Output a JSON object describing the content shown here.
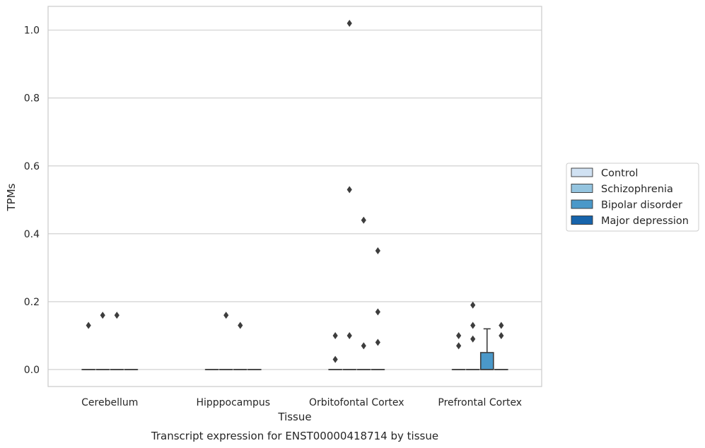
{
  "chart_data": {
    "type": "box",
    "title": "",
    "caption": "Transcript expression for ENST00000418714 by tissue",
    "xlabel": "Tissue",
    "ylabel": "TPMs",
    "ylim": [
      -0.05,
      1.07
    ],
    "yticks": [
      0.0,
      0.2,
      0.4,
      0.6,
      0.8,
      1.0
    ],
    "ytick_labels": [
      "0.0",
      "0.2",
      "0.4",
      "0.6",
      "0.8",
      "1.0"
    ],
    "categories": [
      "Cerebellum",
      "Hipppocampus",
      "Orbitofontal Cortex",
      "Prefrontal Cortex"
    ],
    "grid": "horizontal",
    "legend_position": "right",
    "series": [
      {
        "name": "Control",
        "color": "#d0e1f2",
        "boxes": [
          {
            "q1": 0,
            "median": 0,
            "q3": 0,
            "whislo": 0,
            "whishi": 0,
            "fliers": [
              0.13
            ]
          },
          {
            "q1": 0,
            "median": 0,
            "q3": 0,
            "whislo": 0,
            "whishi": 0,
            "fliers": []
          },
          {
            "q1": 0,
            "median": 0,
            "q3": 0,
            "whislo": 0,
            "whishi": 0,
            "fliers": [
              0.1,
              0.03
            ]
          },
          {
            "q1": 0,
            "median": 0,
            "q3": 0,
            "whislo": 0,
            "whishi": 0,
            "fliers": [
              0.1,
              0.07
            ]
          }
        ]
      },
      {
        "name": "Schizophrenia",
        "color": "#94c4df",
        "boxes": [
          {
            "q1": 0,
            "median": 0,
            "q3": 0,
            "whislo": 0,
            "whishi": 0,
            "fliers": [
              0.16
            ]
          },
          {
            "q1": 0,
            "median": 0,
            "q3": 0,
            "whislo": 0,
            "whishi": 0,
            "fliers": [
              0.16
            ]
          },
          {
            "q1": 0,
            "median": 0,
            "q3": 0,
            "whislo": 0,
            "whishi": 0,
            "fliers": [
              1.02,
              0.53,
              0.1
            ]
          },
          {
            "q1": 0,
            "median": 0,
            "q3": 0,
            "whislo": 0,
            "whishi": 0,
            "fliers": [
              0.19,
              0.13,
              0.09
            ]
          }
        ]
      },
      {
        "name": "Bipolar disorder",
        "color": "#4a98c9",
        "boxes": [
          {
            "q1": 0,
            "median": 0,
            "q3": 0,
            "whislo": 0,
            "whishi": 0,
            "fliers": [
              0.16
            ]
          },
          {
            "q1": 0,
            "median": 0,
            "q3": 0,
            "whislo": 0,
            "whishi": 0,
            "fliers": [
              0.13
            ]
          },
          {
            "q1": 0,
            "median": 0,
            "q3": 0,
            "whislo": 0,
            "whishi": 0,
            "fliers": [
              0.44,
              0.07
            ]
          },
          {
            "q1": 0,
            "median": 0,
            "q3": 0.05,
            "whislo": 0,
            "whishi": 0.12,
            "fliers": []
          }
        ]
      },
      {
        "name": "Major depression",
        "color": "#1764ab",
        "boxes": [
          {
            "q1": 0,
            "median": 0,
            "q3": 0,
            "whislo": 0,
            "whishi": 0,
            "fliers": []
          },
          {
            "q1": 0,
            "median": 0,
            "q3": 0,
            "whislo": 0,
            "whishi": 0,
            "fliers": []
          },
          {
            "q1": 0,
            "median": 0,
            "q3": 0,
            "whislo": 0,
            "whishi": 0,
            "fliers": [
              0.35,
              0.17,
              0.08
            ]
          },
          {
            "q1": 0,
            "median": 0,
            "q3": 0,
            "whislo": 0,
            "whishi": 0,
            "fliers": [
              0.13,
              0.1
            ]
          }
        ]
      }
    ]
  }
}
